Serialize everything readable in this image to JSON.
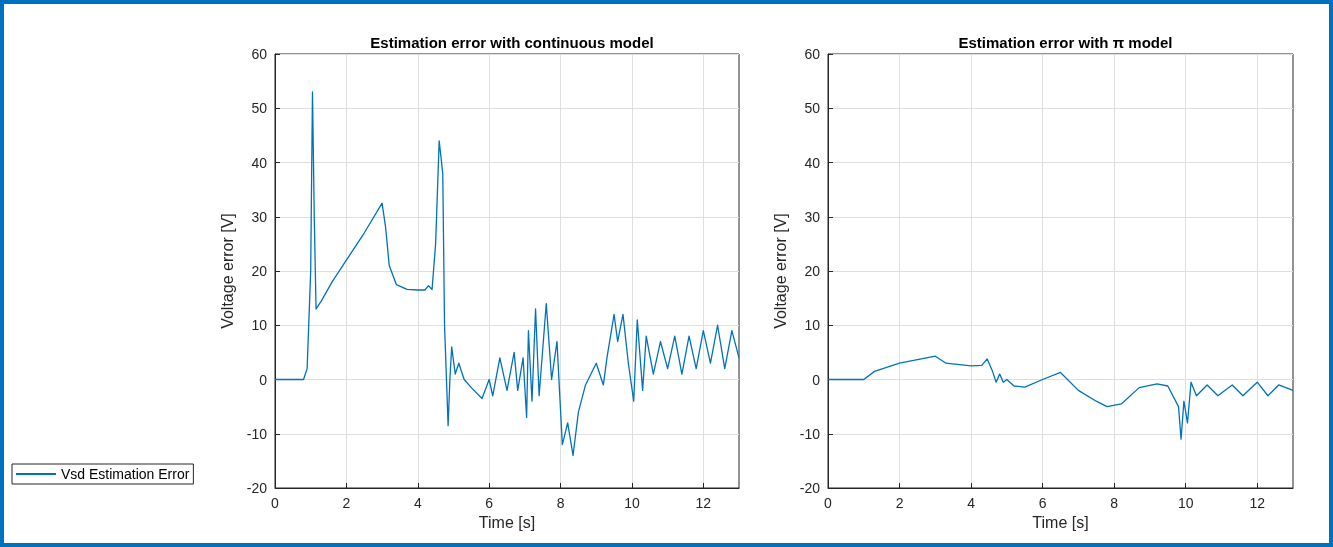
{
  "chart_data": [
    {
      "type": "line",
      "title": "Estimation error with continuous model",
      "xlabel": "Time [s]",
      "ylabel": "Voltage error [V]",
      "xlim": [
        0,
        13
      ],
      "xticks": [
        0,
        2,
        4,
        6,
        8,
        10,
        12
      ],
      "ylim": [
        -20,
        60
      ],
      "yticks": [
        -20,
        -10,
        0,
        10,
        20,
        30,
        40,
        50,
        60
      ],
      "grid": true,
      "legend": "bottom left",
      "line_style": "solid",
      "marker": "none",
      "series": [
        {
          "name": "Vsd Estimation Error",
          "color": "#0072bd",
          "x": [
            0,
            0.8,
            0.9,
            1.0,
            1.05,
            1.1,
            1.15,
            1.3,
            1.6,
            2,
            2.5,
            3.0,
            3.1,
            3.2,
            3.4,
            3.7,
            4.0,
            4.2,
            4.3,
            4.4,
            4.5,
            4.6,
            4.7,
            4.75,
            4.85,
            4.9,
            4.95,
            5.05,
            5.15,
            5.3,
            5.5,
            5.8,
            6.0,
            6.1,
            6.3,
            6.5,
            6.7,
            6.8,
            6.95,
            7.05,
            7.1,
            7.2,
            7.3,
            7.4,
            7.6,
            7.75,
            7.9,
            8.05,
            8.2,
            8.35,
            8.5,
            8.7,
            9.0,
            9.2,
            9.3,
            9.5,
            9.6,
            9.75,
            9.9,
            10.05,
            10.15,
            10.3,
            10.4,
            10.6,
            10.8,
            11.0,
            11.2,
            11.4,
            11.6,
            11.8,
            12.0,
            12.2,
            12.4,
            12.6,
            12.8,
            13
          ],
          "values": [
            0,
            0,
            2,
            20,
            53,
            30,
            13,
            14.5,
            18,
            22,
            27,
            32.5,
            28,
            21,
            17.5,
            16.6,
            16.5,
            16.5,
            17.3,
            16.6,
            25,
            44,
            38,
            10,
            -8.5,
            0,
            6,
            1,
            3,
            0,
            -1.5,
            -3.5,
            0,
            -3,
            4,
            -2,
            5,
            -2,
            4,
            -7,
            9,
            -4,
            13,
            -3,
            14,
            0,
            7,
            -12,
            -8,
            -14,
            -6,
            -1,
            3,
            -1,
            4,
            12,
            7,
            12,
            3,
            -4,
            11,
            -2,
            8,
            1,
            7,
            2,
            8,
            1,
            8,
            2,
            9,
            3,
            10,
            2,
            9,
            4
          ]
        }
      ]
    },
    {
      "type": "line",
      "title": "Estimation error with π model",
      "xlabel": "Time [s]",
      "ylabel": "Voltage error [V]",
      "xlim": [
        0,
        13
      ],
      "xticks": [
        0,
        2,
        4,
        6,
        8,
        10,
        12
      ],
      "ylim": [
        -20,
        60
      ],
      "yticks": [
        -20,
        -10,
        0,
        10,
        20,
        30,
        40,
        50,
        60
      ],
      "grid": true,
      "line_style": "solid",
      "marker": "none",
      "series": [
        {
          "color": "#0072bd",
          "x": [
            0,
            1.0,
            1.3,
            2,
            3.0,
            3.3,
            4.0,
            4.3,
            4.45,
            4.6,
            4.7,
            4.8,
            4.9,
            5.0,
            5.2,
            5.5,
            6.0,
            6.5,
            7.0,
            7.5,
            7.8,
            8.2,
            8.7,
            9.2,
            9.5,
            9.8,
            9.87,
            9.95,
            10.05,
            10.15,
            10.3,
            10.6,
            10.9,
            11.3,
            11.6,
            12.0,
            12.3,
            12.6,
            13
          ],
          "values": [
            0,
            0,
            1.5,
            3,
            4.3,
            3,
            2.5,
            2.6,
            3.8,
            1.5,
            -0.5,
            1,
            -0.5,
            0,
            -1.2,
            -1.4,
            0,
            1.3,
            -2,
            -4,
            -5,
            -4.5,
            -1.5,
            -0.8,
            -1.2,
            -5,
            -11,
            -4,
            -8,
            -0.5,
            -3,
            -1,
            -3,
            -1,
            -3,
            -0.5,
            -3,
            -1,
            -2
          ]
        }
      ]
    }
  ]
}
